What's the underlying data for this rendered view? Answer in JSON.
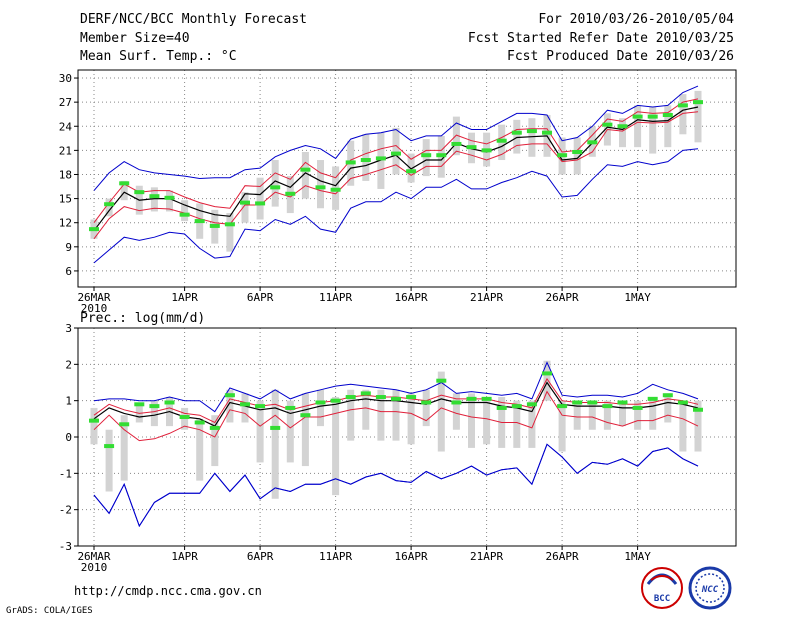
{
  "header": {
    "title": "DERF/NCC/BCC Monthly Forecast",
    "member_size": "Member Size=40",
    "var_label": "Mean Surf. Temp.: °C",
    "for_range": "For 2010/03/26-2010/05/04",
    "started": "Fcst Started Refer Date 2010/03/25",
    "produced": "Fcst Produced Date 2010/03/26"
  },
  "footer": {
    "url": "http://cmdp.ncc.cma.gov.cn",
    "grads": "GrADS: COLA/IGES",
    "logo_bcc": "BCC",
    "logo_ncc": "NCC"
  },
  "colors": {
    "ensemble_mean": "#000000",
    "spread": "#e0203a",
    "extremes": "#0000cc",
    "bars": "#d3d3d3",
    "observed": "#33dd33"
  },
  "chart_data": [
    {
      "type": "line",
      "title": "Mean Surf. Temp.: °C",
      "ylim": [
        4,
        31
      ],
      "yticks": [
        6,
        9,
        12,
        15,
        18,
        21,
        24,
        27,
        30
      ],
      "x_days": 40,
      "x_ticks": [
        {
          "day": 0,
          "label": "26MAR",
          "sub": "2010"
        },
        {
          "day": 6,
          "label": "1APR",
          "sub": ""
        },
        {
          "day": 11,
          "label": "6APR",
          "sub": ""
        },
        {
          "day": 16,
          "label": "11APR",
          "sub": ""
        },
        {
          "day": 21,
          "label": "16APR",
          "sub": ""
        },
        {
          "day": 26,
          "label": "21APR",
          "sub": ""
        },
        {
          "day": 31,
          "label": "26APR",
          "sub": ""
        },
        {
          "day": 36,
          "label": "1MAY",
          "sub": ""
        }
      ],
      "series": [
        {
          "name": "ensemble mean",
          "values": [
            11.0,
            13.5,
            15.8,
            14.8,
            15.0,
            15.0,
            14.2,
            13.5,
            13.0,
            12.8,
            15.6,
            15.5,
            17.2,
            16.4,
            18.2,
            17.2,
            16.6,
            18.8,
            19.1,
            19.8,
            20.4,
            18.7,
            19.8,
            19.8,
            21.9,
            21.2,
            20.8,
            21.5,
            22.6,
            22.7,
            22.8,
            19.8,
            20.0,
            21.9,
            23.9,
            23.6,
            24.8,
            24.6,
            24.7,
            26.0,
            26.4
          ]
        },
        {
          "name": "upper spread",
          "values": [
            12.0,
            14.5,
            16.8,
            15.8,
            16.0,
            16.0,
            15.2,
            14.5,
            14.0,
            13.8,
            16.6,
            16.5,
            18.2,
            17.4,
            19.5,
            18.2,
            17.6,
            19.8,
            20.6,
            21.2,
            21.6,
            19.9,
            21.0,
            21.0,
            22.9,
            22.2,
            21.8,
            22.6,
            23.6,
            23.7,
            23.7,
            20.8,
            21.0,
            22.9,
            24.9,
            24.6,
            25.8,
            25.6,
            25.7,
            27.0,
            27.4
          ]
        },
        {
          "name": "lower spread",
          "values": [
            10.0,
            12.5,
            14.0,
            13.5,
            13.8,
            13.7,
            13.2,
            12.5,
            12.0,
            11.8,
            14.2,
            14.2,
            15.8,
            15.2,
            16.6,
            16.0,
            15.6,
            17.5,
            18.0,
            18.6,
            19.2,
            17.9,
            19.0,
            19.0,
            20.9,
            20.4,
            19.8,
            20.5,
            21.6,
            21.8,
            21.8,
            19.6,
            19.8,
            20.8,
            23.6,
            23.4,
            24.5,
            24.4,
            24.5,
            25.6,
            25.8
          ]
        },
        {
          "name": "ensemble max",
          "values": [
            16.0,
            18.2,
            19.6,
            18.6,
            18.2,
            18.0,
            17.8,
            17.5,
            17.6,
            17.6,
            18.6,
            18.8,
            20.2,
            21.0,
            21.6,
            21.2,
            20.0,
            22.4,
            23.0,
            23.2,
            23.6,
            22.2,
            22.8,
            22.8,
            24.4,
            23.6,
            23.6,
            24.6,
            25.6,
            25.6,
            25.4,
            22.2,
            22.6,
            24.0,
            26.0,
            25.6,
            26.6,
            26.4,
            26.6,
            28.2,
            29.0
          ]
        },
        {
          "name": "ensemble min",
          "values": [
            7.0,
            8.6,
            10.2,
            9.8,
            10.2,
            10.8,
            10.6,
            8.8,
            7.6,
            7.8,
            11.2,
            11.0,
            12.4,
            11.8,
            12.8,
            11.2,
            10.8,
            13.8,
            14.6,
            14.6,
            15.8,
            15.0,
            16.4,
            16.4,
            17.4,
            16.2,
            16.2,
            17.0,
            17.6,
            18.4,
            17.8,
            15.2,
            15.4,
            17.4,
            19.2,
            19.0,
            19.6,
            19.2,
            19.6,
            21.0,
            21.2
          ]
        }
      ],
      "bars_low": [
        10.0,
        12.8,
        14.8,
        13.0,
        13.4,
        13.4,
        12.2,
        10.0,
        9.4,
        8.4,
        12.0,
        12.4,
        14.0,
        13.2,
        15.0,
        13.8,
        13.6,
        16.6,
        17.2,
        16.2,
        18.0,
        17.0,
        17.8,
        17.6,
        20.4,
        19.4,
        19.0,
        19.8,
        20.6,
        20.2,
        20.2,
        18.0,
        18.0,
        20.2,
        21.6,
        21.4,
        21.4,
        20.6,
        21.4,
        23.0,
        22.0
      ],
      "bars_high": [
        12.4,
        15.0,
        17.2,
        16.6,
        16.4,
        16.0,
        14.8,
        14.4,
        13.6,
        13.2,
        15.8,
        17.6,
        19.8,
        17.8,
        20.8,
        19.8,
        19.0,
        22.2,
        23.0,
        23.2,
        23.8,
        20.6,
        22.4,
        22.8,
        25.2,
        23.2,
        23.2,
        24.2,
        24.8,
        25.0,
        25.4,
        22.6,
        22.6,
        24.0,
        25.6,
        25.0,
        26.6,
        26.4,
        26.6,
        28.0,
        28.4
      ],
      "observed": [
        11.2,
        14.3,
        16.9,
        15.8,
        15.3,
        15.1,
        13.0,
        12.2,
        11.6,
        11.8,
        14.5,
        14.4,
        16.4,
        15.6,
        18.6,
        16.4,
        16.1,
        19.5,
        19.8,
        20.0,
        20.6,
        18.4,
        20.4,
        20.4,
        21.8,
        21.4,
        21.0,
        22.2,
        23.2,
        23.4,
        23.2,
        20.4,
        20.8,
        22.0,
        24.2,
        24.0,
        25.2,
        25.2,
        25.4,
        26.6,
        27.0
      ]
    },
    {
      "type": "line",
      "title": "Prec.: log(mm/d)",
      "ylim": [
        -3,
        3
      ],
      "yticks": [
        -3,
        -2,
        -1,
        0,
        1,
        2,
        3
      ],
      "x_days": 40,
      "x_ticks": [
        {
          "day": 0,
          "label": "26MAR",
          "sub": "2010"
        },
        {
          "day": 6,
          "label": "1APR",
          "sub": ""
        },
        {
          "day": 11,
          "label": "6APR",
          "sub": ""
        },
        {
          "day": 16,
          "label": "11APR",
          "sub": ""
        },
        {
          "day": 21,
          "label": "16APR",
          "sub": ""
        },
        {
          "day": 26,
          "label": "21APR",
          "sub": ""
        },
        {
          "day": 31,
          "label": "26APR",
          "sub": ""
        },
        {
          "day": 36,
          "label": "1MAY",
          "sub": ""
        }
      ],
      "series": [
        {
          "name": "ensemble mean",
          "values": [
            0.5,
            0.8,
            0.65,
            0.55,
            0.6,
            0.7,
            0.55,
            0.5,
            0.3,
            0.95,
            0.85,
            0.75,
            0.8,
            0.65,
            0.75,
            0.85,
            0.9,
            1.0,
            1.05,
            1.0,
            1.0,
            0.95,
            0.9,
            1.05,
            0.95,
            0.95,
            0.95,
            0.85,
            0.8,
            0.7,
            1.5,
            0.9,
            0.85,
            0.85,
            0.85,
            0.8,
            0.8,
            0.85,
            0.95,
            0.9,
            0.8
          ]
        },
        {
          "name": "upper spread",
          "values": [
            0.6,
            0.9,
            0.75,
            0.65,
            0.7,
            0.8,
            0.65,
            0.6,
            0.4,
            1.05,
            0.95,
            0.85,
            0.9,
            0.75,
            0.85,
            0.95,
            1.0,
            1.1,
            1.15,
            1.1,
            1.1,
            1.05,
            1.0,
            1.15,
            1.05,
            1.05,
            1.05,
            0.95,
            0.9,
            0.8,
            1.6,
            1.0,
            0.95,
            0.95,
            0.95,
            0.9,
            0.9,
            0.95,
            1.05,
            1.0,
            0.9
          ]
        },
        {
          "name": "lower spread",
          "values": [
            0.2,
            0.6,
            0.2,
            -0.1,
            -0.05,
            0.1,
            0.3,
            0.2,
            0.0,
            0.75,
            0.65,
            0.3,
            0.6,
            0.25,
            0.55,
            0.55,
            0.65,
            0.75,
            0.8,
            0.7,
            0.7,
            0.65,
            0.45,
            0.8,
            0.65,
            0.55,
            0.5,
            0.4,
            0.4,
            0.25,
            1.25,
            0.6,
            0.55,
            0.55,
            0.4,
            0.3,
            0.45,
            0.45,
            0.6,
            0.5,
            0.3
          ]
        },
        {
          "name": "ensemble max",
          "values": [
            1.0,
            1.05,
            1.05,
            1.0,
            1.0,
            1.1,
            1.0,
            1.0,
            0.7,
            1.35,
            1.2,
            1.05,
            1.3,
            1.05,
            1.2,
            1.3,
            1.4,
            1.45,
            1.4,
            1.35,
            1.3,
            1.2,
            1.3,
            1.5,
            1.2,
            1.25,
            1.2,
            1.15,
            1.2,
            1.05,
            2.05,
            1.15,
            1.1,
            1.15,
            1.15,
            1.1,
            1.2,
            1.45,
            1.3,
            1.2,
            1.05
          ]
        },
        {
          "name": "ensemble min",
          "values": [
            -1.6,
            -2.1,
            -1.3,
            -2.45,
            -1.8,
            -1.55,
            -1.55,
            -1.55,
            -1.0,
            -1.5,
            -1.05,
            -1.7,
            -1.4,
            -1.5,
            -1.3,
            -1.3,
            -1.15,
            -1.3,
            -1.1,
            -1.0,
            -1.2,
            -1.25,
            -0.95,
            -1.15,
            -1.0,
            -0.8,
            -1.05,
            -0.9,
            -0.85,
            -1.3,
            -0.2,
            -0.55,
            -1.0,
            -0.7,
            -0.75,
            -0.6,
            -0.8,
            -0.4,
            -0.3,
            -0.6,
            -0.8
          ]
        },
        {
          "name": "ensemble min blue",
          "values": [
            -1.6,
            -2.1,
            -1.3,
            -2.45,
            -1.8,
            -1.55,
            -1.55,
            -1.55,
            -1.0,
            -1.5,
            -1.05,
            -1.7,
            -1.4,
            -1.5,
            -1.3,
            -1.3,
            -1.15,
            -1.3,
            -1.1,
            -1.0,
            -1.2,
            -1.25,
            -0.95,
            -1.15,
            -1.0,
            -0.8,
            -1.05,
            -0.9,
            -0.85,
            -1.3,
            -0.2,
            -0.55,
            -1.0,
            -0.7,
            -0.75,
            -0.6,
            -0.8,
            -0.4,
            -0.3,
            -0.6,
            -0.8
          ]
        }
      ],
      "bars_low": [
        -0.2,
        -1.5,
        -1.2,
        0.4,
        0.3,
        0.3,
        0.2,
        -1.2,
        -0.8,
        0.4,
        0.4,
        -0.7,
        -1.7,
        -0.7,
        -0.8,
        0.3,
        -1.6,
        -0.1,
        0.2,
        -0.1,
        -0.1,
        -0.2,
        0.3,
        -0.4,
        0.2,
        -0.3,
        -0.2,
        -0.3,
        -0.3,
        -0.3,
        1.0,
        -0.4,
        0.2,
        0.2,
        0.2,
        0.3,
        0.2,
        0.2,
        0.4,
        -0.4,
        -0.4
      ],
      "bars_high": [
        0.8,
        0.2,
        0.6,
        0.95,
        1.0,
        1.1,
        0.8,
        0.5,
        0.6,
        1.3,
        1.2,
        1.0,
        1.3,
        1.0,
        1.2,
        1.3,
        1.1,
        1.3,
        1.3,
        1.3,
        1.3,
        1.2,
        1.3,
        1.8,
        1.2,
        1.2,
        1.1,
        1.1,
        1.0,
        1.0,
        2.1,
        1.0,
        1.0,
        1.0,
        1.0,
        0.9,
        1.0,
        1.0,
        1.2,
        1.0,
        1.0
      ],
      "observed": [
        0.45,
        -0.25,
        0.35,
        0.9,
        0.85,
        0.95,
        0.55,
        0.4,
        0.25,
        1.15,
        0.9,
        0.85,
        0.25,
        0.8,
        0.6,
        0.95,
        1.0,
        1.1,
        1.2,
        1.1,
        1.05,
        1.1,
        0.95,
        1.55,
        0.95,
        1.05,
        1.05,
        0.8,
        0.85,
        0.9,
        1.75,
        0.85,
        0.95,
        0.95,
        0.85,
        0.95,
        0.8,
        1.05,
        1.15,
        0.95,
        0.75
      ]
    }
  ]
}
